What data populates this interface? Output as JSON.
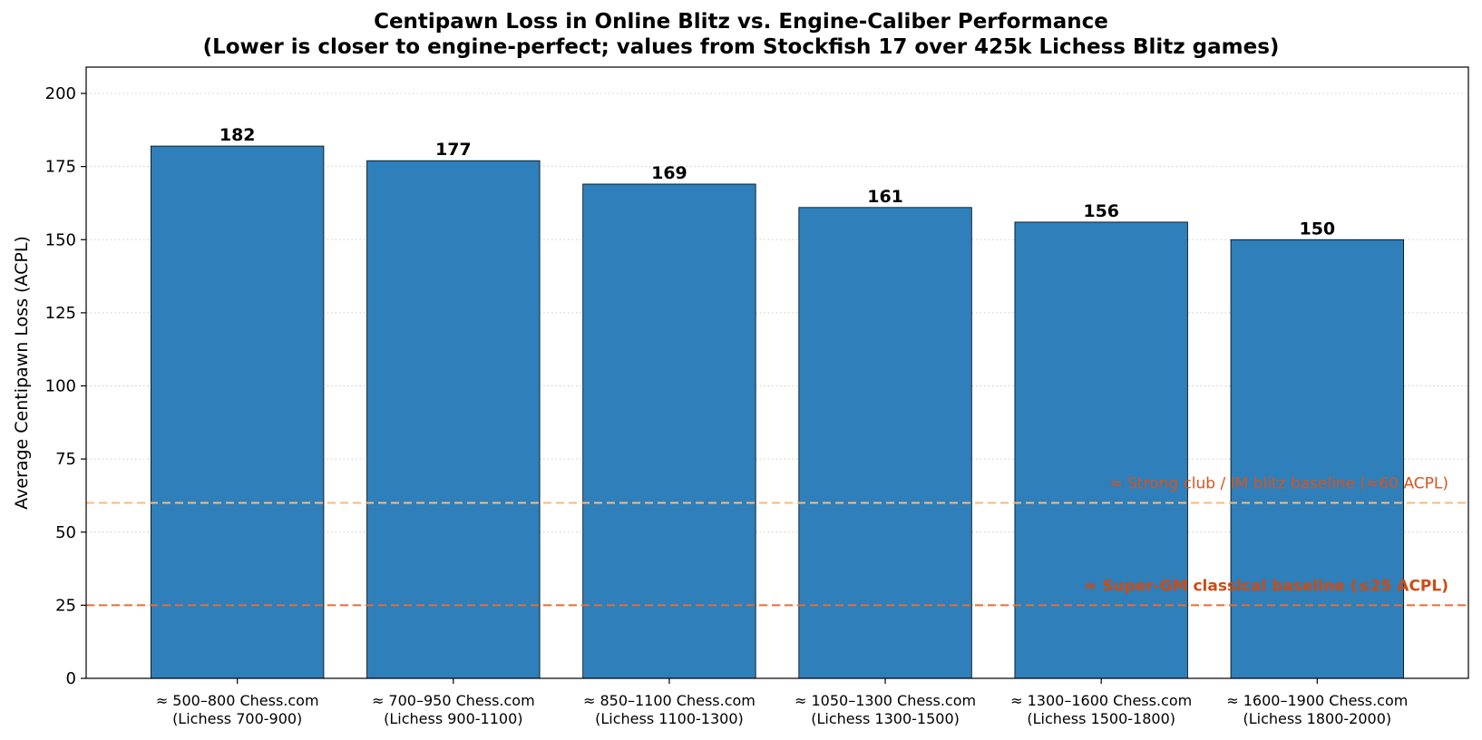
{
  "chart_data": {
    "type": "bar",
    "title": "Centipawn Loss in Online Blitz vs. Engine-Caliber Performance",
    "subtitle": "(Lower is closer to engine-perfect; values from Stockfish 17 over 425k Lichess Blitz games)",
    "xlabel": "",
    "ylabel": "Average Centipawn Loss (ACPL)",
    "ylim": [
      0,
      209
    ],
    "yticks": [
      0,
      25,
      50,
      75,
      100,
      125,
      150,
      175,
      200
    ],
    "grid": "y-dotted",
    "categories": [
      {
        "line1": "≈ 500–800 Chess.com",
        "line2": "(Lichess 700-900)"
      },
      {
        "line1": "≈ 700–950 Chess.com",
        "line2": "(Lichess 900-1100)"
      },
      {
        "line1": "≈ 850–1100 Chess.com",
        "line2": "(Lichess 1100-1300)"
      },
      {
        "line1": "≈ 1050–1300 Chess.com",
        "line2": "(Lichess 1300-1500)"
      },
      {
        "line1": "≈ 1300–1600 Chess.com",
        "line2": "(Lichess 1500-1800)"
      },
      {
        "line1": "≈ 1600–1900 Chess.com",
        "line2": "(Lichess 1800-2000)"
      }
    ],
    "values": [
      182,
      177,
      169,
      161,
      156,
      150
    ],
    "bar_color": "#2e7fba",
    "reference_lines": [
      {
        "value": 60,
        "label": "≈ Strong club / IM blitz baseline (≈60 ACPL)",
        "color": "#fdb87a",
        "text_color": "#d9531e",
        "bold": false
      },
      {
        "value": 25,
        "label": "≈ Super-GM classical baseline (≤25 ACPL)",
        "color": "#e0703a",
        "text_color": "#cc4c14",
        "bold": true
      }
    ]
  }
}
